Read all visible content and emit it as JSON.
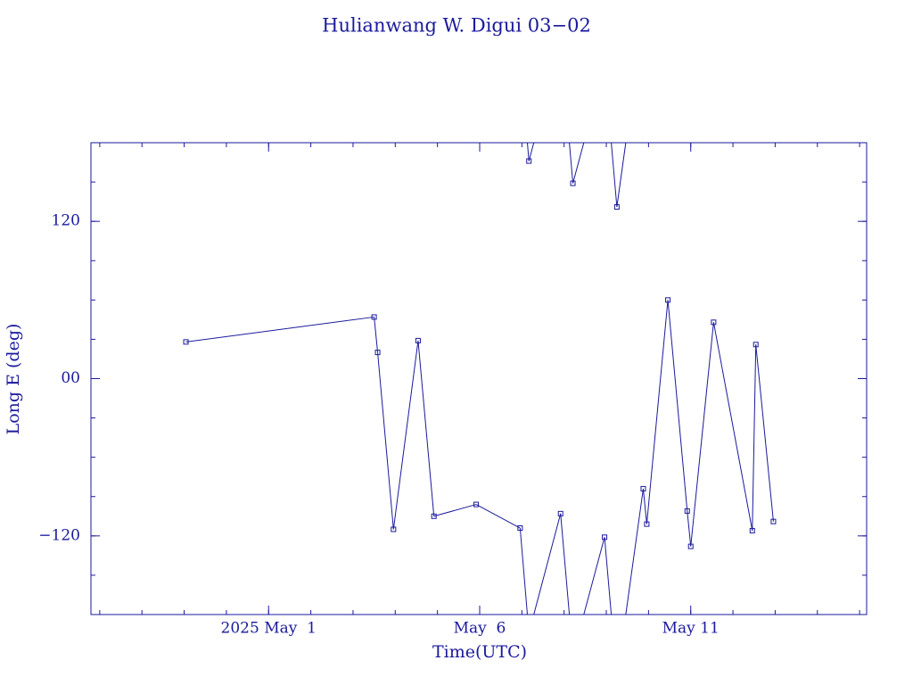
{
  "chart_data": {
    "type": "line",
    "title": "Hulianwang W. Digui 03−02",
    "x_label": "Time(UTC)",
    "y_label": "Long E (deg)",
    "color": "#1a1a9c",
    "xlim": [
      "2025-04-26T19:00",
      "2025-05-15T04:00"
    ],
    "xticks": [
      {
        "value": "2025-05-01",
        "label": "2025 May  1"
      },
      {
        "value": "2025-05-06",
        "label": "May  6"
      },
      {
        "value": "2025-05-11",
        "label": "May 11"
      }
    ],
    "ylim": [
      -180,
      180
    ],
    "yticks": [
      {
        "value": -120,
        "label": "−120"
      },
      {
        "value": 0,
        "label": "00"
      },
      120
    ],
    "x": [
      "2025-04-29T01:00",
      "2025-05-03T12:00",
      "2025-05-03T14:00",
      "2025-05-03T23:00",
      "2025-05-04T13:00",
      "2025-05-04T22:00",
      "2025-05-05T22:00",
      "2025-05-06T23:00",
      "2025-05-07T04:00",
      "2025-05-07T22:00",
      "2025-05-08T05:00",
      "2025-05-08T23:00",
      "2025-05-09T06:00",
      "2025-05-09T21:00",
      "2025-05-09T23:00",
      "2025-05-10T11:00",
      "2025-05-10T22:00",
      "2025-05-11T00:00",
      "2025-05-11T13:00",
      "2025-05-12T11:00",
      "2025-05-12T13:00",
      "2025-05-12T23:00"
    ],
    "values": [
      28,
      47,
      20,
      -115,
      29,
      -105,
      -96,
      -114,
      166,
      -103,
      149,
      -121,
      131,
      -84,
      -111,
      60,
      -101,
      -128,
      43,
      -116,
      26,
      -109
    ]
  }
}
